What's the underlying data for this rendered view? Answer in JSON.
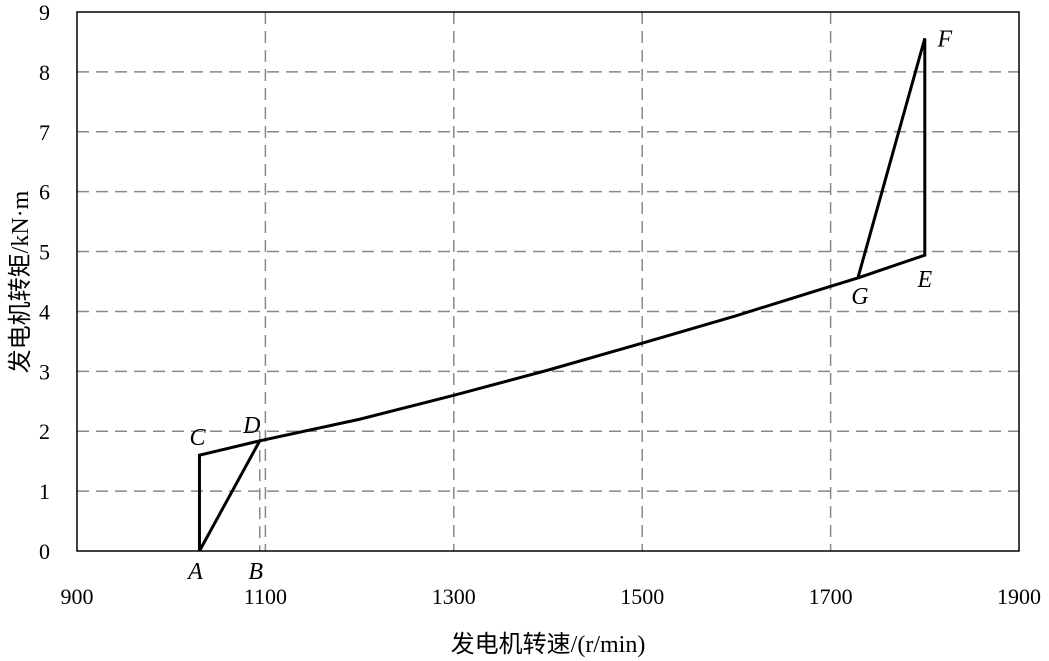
{
  "chart_data": {
    "type": "line",
    "title": "",
    "xlabel": "发电机转速/(r/min)",
    "ylabel": "发电机转矩/kN·m",
    "xlim": [
      900,
      1900
    ],
    "ylim": [
      0,
      9
    ],
    "xticks": [
      "900",
      "1100",
      "1300",
      "1500",
      "1700",
      "1900"
    ],
    "yticks": [
      "0",
      "1",
      "2",
      "3",
      "4",
      "5",
      "6",
      "7",
      "8",
      "9"
    ],
    "grid": true,
    "grid_x": [
      1100,
      1300,
      1500,
      1700
    ],
    "grid_y": [
      1,
      2,
      3,
      4,
      5,
      6,
      7,
      8
    ],
    "reference_line_x": 1094,
    "points": [
      {
        "label": "A",
        "x": 1030,
        "y": 0
      },
      {
        "label": "B",
        "x": 1094,
        "y": 0
      },
      {
        "label": "C",
        "x": 1030,
        "y": 1.6
      },
      {
        "label": "D",
        "x": 1094,
        "y": 1.84
      },
      {
        "label": "E",
        "x": 1800,
        "y": 4.94
      },
      {
        "label": "F",
        "x": 1800,
        "y": 8.56
      },
      {
        "label": "G",
        "x": 1729,
        "y": 4.56
      }
    ],
    "series": [
      {
        "values": [
          [
            1030,
            0
          ],
          [
            1030,
            1.6
          ],
          [
            1094,
            1.84
          ],
          [
            1200,
            2.2
          ],
          [
            1300,
            2.6
          ],
          [
            1400,
            3.02
          ],
          [
            1500,
            3.47
          ],
          [
            1600,
            3.93
          ],
          [
            1700,
            4.42
          ],
          [
            1729,
            4.56
          ],
          [
            1800,
            4.94
          ],
          [
            1800,
            8.56
          ],
          [
            1729,
            4.56
          ]
        ]
      },
      {
        "values": [
          [
            1030,
            0
          ],
          [
            1094,
            1.84
          ]
        ]
      }
    ]
  }
}
